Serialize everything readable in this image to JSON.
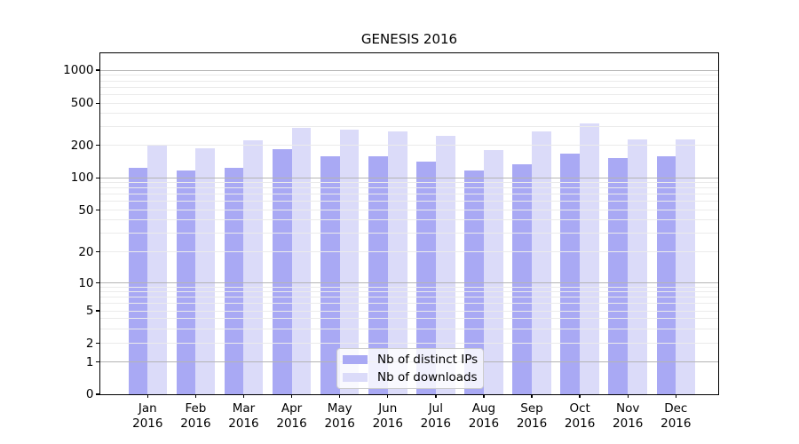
{
  "chart": {
    "title": "GENESIS 2016"
  },
  "chart_data": {
    "type": "bar",
    "title": "GENESIS 2016",
    "categories": [
      "Jan",
      "Feb",
      "Mar",
      "Apr",
      "May",
      "Jun",
      "Jul",
      "Aug",
      "Sep",
      "Oct",
      "Nov",
      "Dec"
    ],
    "year": "2016",
    "series": [
      {
        "name": "Nb of distinct IPs",
        "color": "#a9a9f4",
        "values": [
          124,
          116,
          123,
          184,
          158,
          158,
          141,
          118,
          134,
          169,
          152,
          159
        ]
      },
      {
        "name": "Nb of downloads",
        "color": "#dbdbf9",
        "values": [
          200,
          189,
          223,
          293,
          283,
          273,
          248,
          181,
          270,
          322,
          228,
          228
        ]
      }
    ],
    "yscale": "symlog",
    "yticks": [
      0,
      1,
      2,
      5,
      10,
      20,
      50,
      100,
      200,
      500,
      1000
    ],
    "ylim": [
      0,
      1200
    ],
    "xlabel": "",
    "ylabel": "",
    "grid": true,
    "legend_position": "lower-center"
  }
}
